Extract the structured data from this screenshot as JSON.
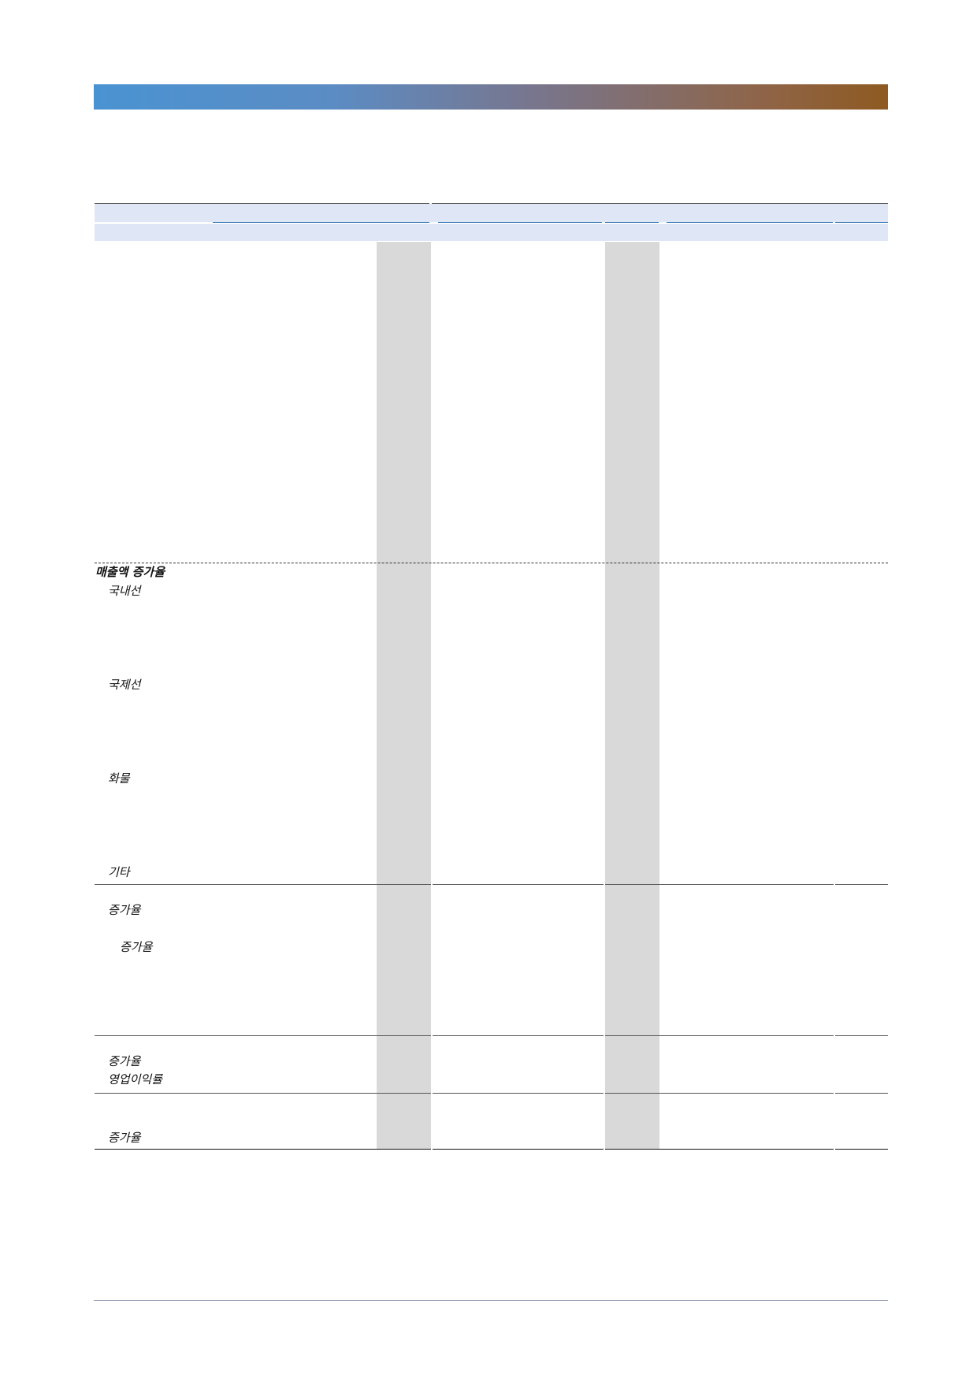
{
  "colors": {
    "banner_start": "#4a93d2",
    "banner_end": "#8e5a21",
    "header_fill": "#dfe6f5",
    "shaded_column": "#d9d9d9",
    "header_rule": "#3a78b5"
  },
  "table": {
    "rows": [
      {
        "label": "매출액 증가율",
        "style": "bold"
      },
      {
        "label": "국내선",
        "style": "indent"
      },
      {
        "label": "국제선",
        "style": "indent"
      },
      {
        "label": "화물",
        "style": "indent"
      },
      {
        "label": "기타",
        "style": "indent"
      },
      {
        "label": "증가율",
        "style": "indent"
      },
      {
        "label": "증가율",
        "style": "indent2"
      },
      {
        "label": "증가율",
        "style": "indent"
      },
      {
        "label": "영업이익률",
        "style": "indent"
      },
      {
        "label": "증가율",
        "style": "indent"
      }
    ]
  }
}
